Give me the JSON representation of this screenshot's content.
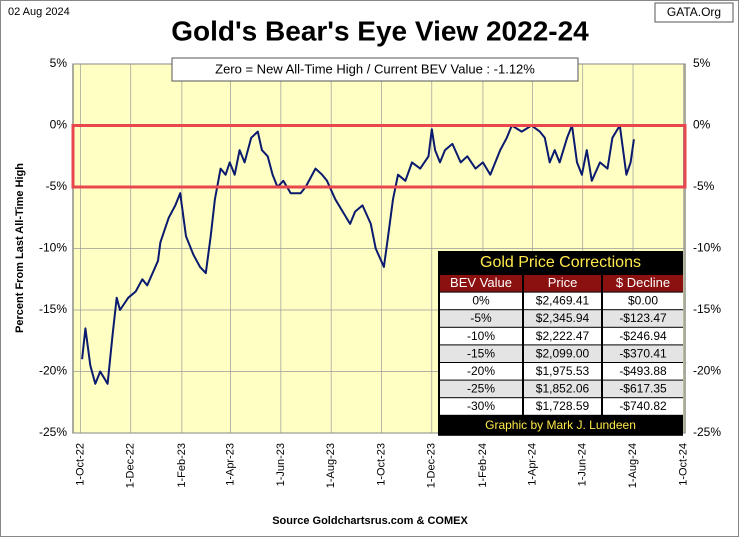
{
  "chart_data": {
    "type": "line",
    "title": "Gold's Bear's Eye View 2022-24",
    "date_label": "02 Aug 2024",
    "site_label": "GATA.Org",
    "annotation": "Zero = New All-Time High / Current  BEV Value : -1.12%",
    "y_axis_label": "Percent  From  Last  All-Time  High",
    "source": "Source Goldchartsrus.com  & COMEX",
    "xlim": [
      "2022-09-22",
      "2024-10-03"
    ],
    "xticks": [
      {
        "value": "2022-10-01",
        "label": "1-Oct-22"
      },
      {
        "value": "2022-12-01",
        "label": "1-Dec-22"
      },
      {
        "value": "2023-02-01",
        "label": "1-Feb-23"
      },
      {
        "value": "2023-04-01",
        "label": "1-Apr-23"
      },
      {
        "value": "2023-06-01",
        "label": "1-Jun-23"
      },
      {
        "value": "2023-08-01",
        "label": "1-Aug-23"
      },
      {
        "value": "2023-10-01",
        "label": "1-Oct-23"
      },
      {
        "value": "2023-12-01",
        "label": "1-Dec-23"
      },
      {
        "value": "2024-02-01",
        "label": "1-Feb-24"
      },
      {
        "value": "2024-04-01",
        "label": "1-Apr-24"
      },
      {
        "value": "2024-06-01",
        "label": "1-Jun-24"
      },
      {
        "value": "2024-08-01",
        "label": "1-Aug-24"
      },
      {
        "value": "2024-10-01",
        "label": "1-Oct-24"
      }
    ],
    "ylim": [
      -25,
      5
    ],
    "yticks": [
      {
        "value": 5,
        "label": "5%"
      },
      {
        "value": 0,
        "label": "0%"
      },
      {
        "value": -5,
        "label": "-5%"
      },
      {
        "value": -10,
        "label": "-10%"
      },
      {
        "value": -15,
        "label": "-15%"
      },
      {
        "value": -20,
        "label": "-20%"
      },
      {
        "value": -25,
        "label": "-25%"
      }
    ],
    "grid": true,
    "highlight_band": [
      0,
      -5
    ],
    "highlight_color": "#e8474e",
    "color": "#0a1a6e",
    "x": [
      "2022-10-03",
      "2022-10-07",
      "2022-10-13",
      "2022-10-19",
      "2022-10-25",
      "2022-11-03",
      "2022-11-09",
      "2022-11-14",
      "2022-11-18",
      "2022-11-28",
      "2022-12-07",
      "2022-12-15",
      "2022-12-21",
      "2023-01-03",
      "2023-01-06",
      "2023-01-16",
      "2023-01-24",
      "2023-01-30",
      "2023-02-06",
      "2023-02-15",
      "2023-02-23",
      "2023-03-02",
      "2023-03-08",
      "2023-03-13",
      "2023-03-20",
      "2023-03-26",
      "2023-03-31",
      "2023-04-06",
      "2023-04-12",
      "2023-04-18",
      "2023-04-26",
      "2023-05-04",
      "2023-05-09",
      "2023-05-16",
      "2023-05-22",
      "2023-05-28",
      "2023-06-04",
      "2023-06-13",
      "2023-06-25",
      "2023-07-01",
      "2023-07-13",
      "2023-07-21",
      "2023-07-27",
      "2023-08-06",
      "2023-08-15",
      "2023-08-24",
      "2023-08-30",
      "2023-09-08",
      "2023-09-18",
      "2023-09-24",
      "2023-10-04",
      "2023-10-09",
      "2023-10-15",
      "2023-10-21",
      "2023-10-30",
      "2023-11-07",
      "2023-11-17",
      "2023-11-27",
      "2023-12-01",
      "2023-12-05",
      "2023-12-11",
      "2023-12-17",
      "2023-12-26",
      "2024-01-05",
      "2024-01-13",
      "2024-01-23",
      "2024-02-01",
      "2024-02-10",
      "2024-02-22",
      "2024-03-01",
      "2024-03-07",
      "2024-03-19",
      "2024-03-31",
      "2024-04-10",
      "2024-04-16",
      "2024-04-22",
      "2024-04-28",
      "2024-05-04",
      "2024-05-13",
      "2024-05-19",
      "2024-05-25",
      "2024-05-31",
      "2024-06-06",
      "2024-06-12",
      "2024-06-22",
      "2024-07-01",
      "2024-07-07",
      "2024-07-16",
      "2024-07-20",
      "2024-07-24",
      "2024-07-29",
      "2024-08-02"
    ],
    "values": [
      -19,
      -16.5,
      -19.5,
      -21,
      -20,
      -21,
      -17,
      -14,
      -15,
      -14,
      -13.5,
      -12.5,
      -13,
      -11,
      -9.5,
      -7.5,
      -6.5,
      -5.5,
      -9,
      -10.5,
      -11.5,
      -12,
      -9,
      -6,
      -3.5,
      -4,
      -3,
      -4,
      -2,
      -3,
      -1,
      -0.5,
      -2,
      -2.5,
      -4,
      -5,
      -4.5,
      -5.5,
      -5.5,
      -5,
      -3.5,
      -4,
      -4.5,
      -6,
      -7,
      -8,
      -7,
      -6.5,
      -8,
      -10,
      -11.5,
      -9,
      -6,
      -4,
      -4.5,
      -3,
      -3.5,
      -2.5,
      -0.3,
      -2,
      -3,
      -2,
      -1.5,
      -3,
      -2.5,
      -3.5,
      -3,
      -4,
      -2,
      -1,
      0,
      -0.5,
      0,
      -0.5,
      -1,
      -3,
      -2,
      -3,
      -1,
      0,
      -3,
      -4,
      -2,
      -4.5,
      -3,
      -3.5,
      -1,
      0,
      -2,
      -4,
      -3,
      -1.12
    ]
  },
  "table": {
    "title": "Gold Price Corrections",
    "columns": [
      "BEV Value",
      "Price",
      "$ Decline"
    ],
    "rows": [
      [
        "0%",
        "$2,469.41",
        "$0.00"
      ],
      [
        "-5%",
        "$2,345.94",
        "-$123.47"
      ],
      [
        "-10%",
        "$2,222.47",
        "-$246.94"
      ],
      [
        "-15%",
        "$2,099.00",
        "-$370.41"
      ],
      [
        "-20%",
        "$1,975.53",
        "-$493.88"
      ],
      [
        "-25%",
        "$1,852.06",
        "-$617.35"
      ],
      [
        "-30%",
        "$1,728.59",
        "-$740.82"
      ]
    ],
    "footer": "Graphic by Mark J. Lundeen"
  }
}
